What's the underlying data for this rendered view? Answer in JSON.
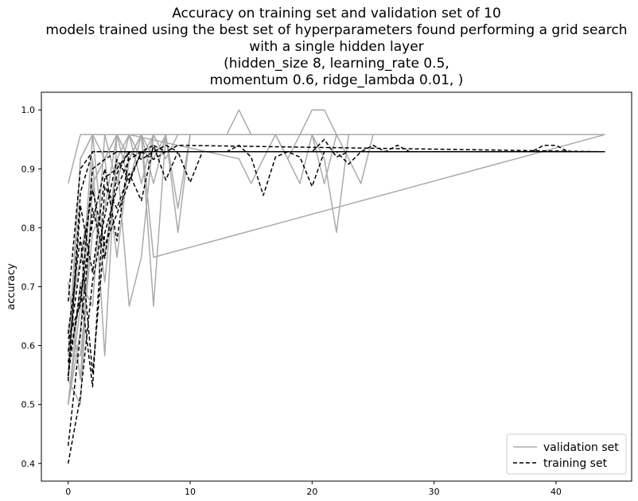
{
  "chart_data": {
    "type": "line",
    "title_lines": [
      "Accuracy on training set and validation set of 10",
      "models trained using the best set of hyperparameters found performing a grid search",
      "with a single hidden layer",
      "(hidden_size 8, learning_rate 0.5,",
      "momentum 0.6, ridge_lambda 0.01, )"
    ],
    "xlabel": "",
    "ylabel": "accuracy",
    "xlim": [
      -2.2,
      46.2
    ],
    "ylim": [
      0.37,
      1.03
    ],
    "xticks": [
      0,
      10,
      20,
      30,
      40
    ],
    "yticks": [
      0.4,
      0.5,
      0.6,
      0.7,
      0.8,
      0.9,
      1.0
    ],
    "xtick_labels": [
      "0",
      "10",
      "20",
      "30",
      "40"
    ],
    "ytick_labels": [
      "0.4",
      "0.5",
      "0.6",
      "0.7",
      "0.8",
      "0.9",
      "1.0"
    ],
    "legend": {
      "position": "lower-right",
      "entries": [
        {
          "label": "validation set",
          "color": "#aaaaaa",
          "style": "solid"
        },
        {
          "label": "training set",
          "color": "#000000",
          "style": "dashed"
        }
      ]
    },
    "series": [
      {
        "group": "validation",
        "color": "#aaaaaa",
        "style": "solid",
        "x": [
          0,
          1,
          2,
          3,
          4,
          5,
          6,
          7,
          8,
          9,
          10,
          11,
          12,
          13,
          14,
          15,
          16,
          17,
          18,
          19,
          20,
          21,
          22,
          23,
          24,
          25,
          44
        ],
        "y": [
          0.875,
          0.958,
          0.958,
          0.958,
          0.958,
          0.958,
          0.958,
          0.958,
          0.958,
          0.958,
          0.958,
          0.958,
          0.958,
          0.958,
          1.0,
          0.958,
          0.958,
          0.958,
          0.958,
          0.958,
          1.0,
          1.0,
          0.958,
          0.958,
          0.958,
          0.958,
          0.958
        ]
      },
      {
        "group": "validation",
        "color": "#aaaaaa",
        "style": "solid",
        "x": [
          0,
          1,
          2,
          3,
          4,
          5,
          6,
          7,
          8,
          9,
          10,
          44
        ],
        "y": [
          0.708,
          0.542,
          0.875,
          0.917,
          0.958,
          0.917,
          0.958,
          0.917,
          0.958,
          0.833,
          0.958,
          0.958
        ]
      },
      {
        "group": "validation",
        "color": "#aaaaaa",
        "style": "solid",
        "x": [
          0,
          1,
          2,
          3,
          4,
          5,
          6,
          7,
          8,
          9,
          10,
          44
        ],
        "y": [
          0.5,
          0.625,
          0.917,
          0.583,
          0.958,
          0.917,
          0.958,
          0.875,
          0.958,
          0.792,
          0.958,
          0.958
        ]
      },
      {
        "group": "validation",
        "color": "#aaaaaa",
        "style": "solid",
        "x": [
          0,
          1,
          2,
          3,
          4,
          5,
          6,
          7,
          8,
          9,
          10,
          44
        ],
        "y": [
          0.583,
          0.917,
          0.958,
          0.917,
          0.75,
          0.917,
          0.958,
          0.667,
          0.958,
          0.958,
          0.958,
          0.958
        ]
      },
      {
        "group": "validation",
        "color": "#aaaaaa",
        "style": "solid",
        "x": [
          0,
          1,
          2,
          3,
          4,
          5,
          6,
          7,
          8,
          9,
          44
        ],
        "y": [
          0.542,
          0.5,
          0.875,
          0.708,
          0.917,
          0.667,
          0.75,
          0.958,
          0.917,
          0.958,
          0.958
        ]
      },
      {
        "group": "validation",
        "color": "#aaaaaa",
        "style": "solid",
        "x": [
          0,
          1,
          2,
          3,
          4,
          5,
          6,
          7,
          8,
          44
        ],
        "y": [
          0.5,
          0.708,
          0.667,
          0.958,
          0.875,
          0.958,
          0.917,
          0.958,
          0.958,
          0.958
        ]
      },
      {
        "group": "validation",
        "color": "#aaaaaa",
        "style": "solid",
        "x": [
          0,
          1,
          2,
          3,
          4,
          5,
          6,
          7,
          44
        ],
        "y": [
          0.583,
          0.583,
          0.792,
          0.833,
          0.958,
          0.875,
          0.958,
          0.75,
          0.958
        ]
      },
      {
        "group": "validation",
        "color": "#aaaaaa",
        "style": "solid",
        "x": [
          0,
          1,
          2,
          3,
          4,
          5,
          6,
          7,
          44
        ],
        "y": [
          0.5,
          0.667,
          0.958,
          0.75,
          0.917,
          0.958,
          0.875,
          0.958,
          0.958
        ]
      },
      {
        "group": "validation",
        "color": "#aaaaaa",
        "style": "solid",
        "x": [
          0,
          1,
          2,
          3,
          4,
          5,
          14,
          15,
          16,
          17,
          18,
          19,
          20,
          21,
          22,
          23,
          24,
          25,
          44
        ],
        "y": [
          0.625,
          0.75,
          0.875,
          0.917,
          0.958,
          0.958,
          0.917,
          0.875,
          0.917,
          0.958,
          0.917,
          0.875,
          0.958,
          0.875,
          0.958,
          0.917,
          0.875,
          0.958,
          0.958
        ]
      },
      {
        "group": "validation",
        "color": "#aaaaaa",
        "style": "solid",
        "x": [
          0,
          1,
          2,
          3,
          4,
          5,
          17,
          18,
          19,
          20,
          21,
          22,
          23,
          44
        ],
        "y": [
          0.542,
          0.917,
          0.958,
          0.958,
          0.958,
          0.958,
          0.958,
          0.917,
          0.958,
          0.958,
          0.917,
          0.792,
          0.958,
          0.958
        ]
      },
      {
        "group": "training",
        "color": "#000000",
        "style": "dashed",
        "x": [
          0,
          1,
          2,
          3,
          4,
          5,
          6,
          7,
          8,
          44
        ],
        "y": [
          0.675,
          0.9,
          0.929,
          0.929,
          0.929,
          0.929,
          0.929,
          0.929,
          0.929,
          0.929
        ]
      },
      {
        "group": "training",
        "color": "#000000",
        "style": "dashed",
        "x": [
          0,
          1,
          2,
          3,
          4,
          5,
          6,
          7,
          8,
          9,
          10,
          11,
          44
        ],
        "y": [
          0.548,
          0.838,
          0.724,
          0.885,
          0.9,
          0.929,
          0.916,
          0.929,
          0.929,
          0.929,
          0.877,
          0.929,
          0.929
        ]
      },
      {
        "group": "training",
        "color": "#000000",
        "style": "dashed",
        "x": [
          0,
          1,
          2,
          3,
          4,
          5,
          6,
          7,
          8,
          9,
          44
        ],
        "y": [
          0.62,
          0.784,
          0.552,
          0.791,
          0.867,
          0.916,
          0.929,
          0.94,
          0.881,
          0.929,
          0.929
        ]
      },
      {
        "group": "training",
        "color": "#000000",
        "style": "dashed",
        "x": [
          0,
          1,
          2,
          3,
          4,
          5,
          6,
          7,
          8,
          9,
          44
        ],
        "y": [
          0.4,
          0.514,
          0.71,
          0.82,
          0.916,
          0.881,
          0.929,
          0.916,
          0.929,
          0.94,
          0.929
        ]
      },
      {
        "group": "training",
        "color": "#000000",
        "style": "dashed",
        "x": [
          0,
          1,
          2,
          3,
          4,
          5,
          6,
          7,
          8,
          9,
          10,
          44
        ],
        "y": [
          0.43,
          0.62,
          0.833,
          0.748,
          0.892,
          0.929,
          0.929,
          0.929,
          0.94,
          0.929,
          0.929,
          0.929
        ]
      },
      {
        "group": "training",
        "color": "#000000",
        "style": "dashed",
        "x": [
          0,
          1,
          2,
          3,
          4,
          5,
          6,
          7,
          8,
          44
        ],
        "y": [
          0.548,
          0.7,
          0.53,
          0.87,
          0.833,
          0.892,
          0.846,
          0.94,
          0.929,
          0.929
        ]
      },
      {
        "group": "training",
        "color": "#000000",
        "style": "dashed",
        "x": [
          0,
          1,
          2,
          3,
          4,
          5,
          6,
          7,
          44
        ],
        "y": [
          0.59,
          0.74,
          0.864,
          0.77,
          0.824,
          0.877,
          0.929,
          0.929,
          0.929
        ]
      },
      {
        "group": "training",
        "color": "#000000",
        "style": "dashed",
        "x": [
          0,
          1,
          2,
          3,
          4,
          5,
          6,
          7,
          44
        ],
        "y": [
          0.572,
          0.68,
          0.81,
          0.9,
          0.778,
          0.929,
          0.929,
          0.929,
          0.929
        ]
      },
      {
        "group": "training",
        "color": "#000000",
        "style": "dashed",
        "x": [
          0,
          1,
          2,
          3,
          4,
          5,
          13,
          14,
          15,
          16,
          17,
          18,
          19,
          20,
          21,
          22,
          23,
          24,
          25,
          26,
          27,
          28,
          38,
          39,
          40,
          41,
          44
        ],
        "y": [
          0.612,
          0.67,
          0.9,
          0.916,
          0.929,
          0.929,
          0.929,
          0.94,
          0.92,
          0.855,
          0.92,
          0.929,
          0.92,
          0.87,
          0.929,
          0.929,
          0.908,
          0.929,
          0.94,
          0.929,
          0.94,
          0.929,
          0.929,
          0.94,
          0.94,
          0.929,
          0.929
        ]
      },
      {
        "group": "training",
        "color": "#000000",
        "style": "dashed",
        "x": [
          0,
          1,
          2,
          3,
          4,
          5,
          17,
          18,
          19,
          20,
          21,
          22,
          23,
          24,
          44
        ],
        "y": [
          0.54,
          0.86,
          0.929,
          0.929,
          0.929,
          0.929,
          0.929,
          0.929,
          0.929,
          0.929,
          0.95,
          0.92,
          0.929,
          0.929,
          0.929
        ]
      }
    ]
  }
}
